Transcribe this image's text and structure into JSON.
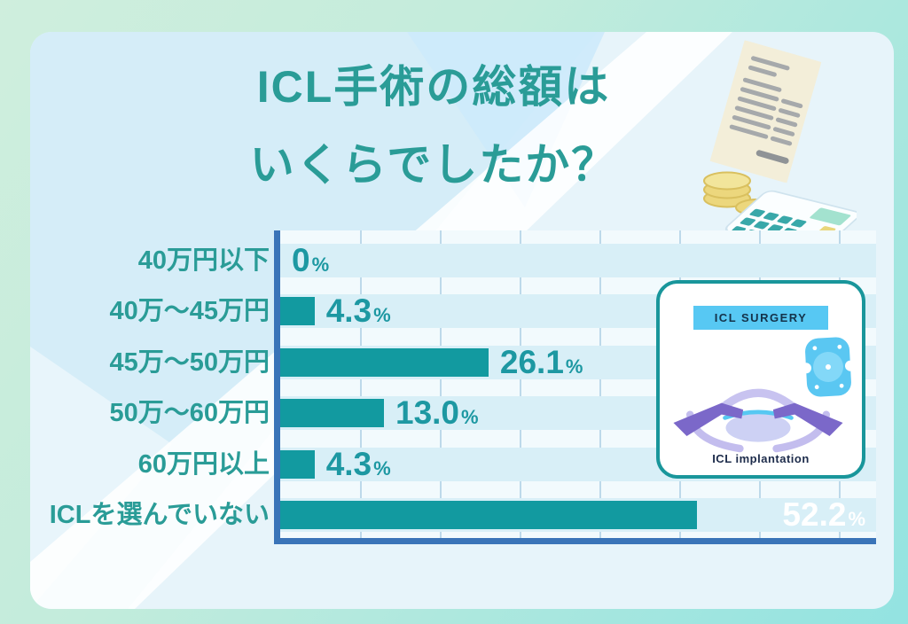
{
  "title": {
    "line1": "ICL手術の総額は",
    "line2": "いくらでしたか？"
  },
  "chart_data": {
    "type": "bar",
    "orientation": "horizontal",
    "title": "ICL手術の総額はいくらでしたか？",
    "categories": [
      "40万円以下",
      "40万〜45万円",
      "45万〜50万円",
      "50万〜60万円",
      "60万円以上",
      "ICLを選んでいない"
    ],
    "values": [
      0,
      4.3,
      26.1,
      13.0,
      4.3,
      52.2
    ],
    "value_labels": [
      "0",
      "4.3",
      "26.1",
      "13.0",
      "4.3",
      "52.2"
    ],
    "unit": "%",
    "xlim": [
      0,
      70
    ],
    "grid_step": 10,
    "grid": true,
    "legend": false,
    "value_label_placement": "outside bar end, last bar inside right-aligned in white"
  },
  "inset": {
    "header": "ICL SURGERY",
    "caption": "ICL implantation"
  },
  "illustration": {
    "items": [
      "receipt-icon",
      "coins-icon",
      "calculator-icon"
    ]
  },
  "colors": {
    "page_bg_from": "#cfeedd",
    "page_bg_to": "#93e3e1",
    "card_bg": "#e7f4fa",
    "title_text": "#2a9c97",
    "category_text": "#2a9c97",
    "value_text": "#1d98a2",
    "value_inside_text": "#ffffff",
    "bar": "#129aa0",
    "band": "#d8eff7",
    "plot_bg": "#f2fafd",
    "gridline": "#bdd9ea",
    "axis": "#3a74b8",
    "inset_border": "#19969b",
    "inset_header_bg": "#57c8f3"
  }
}
